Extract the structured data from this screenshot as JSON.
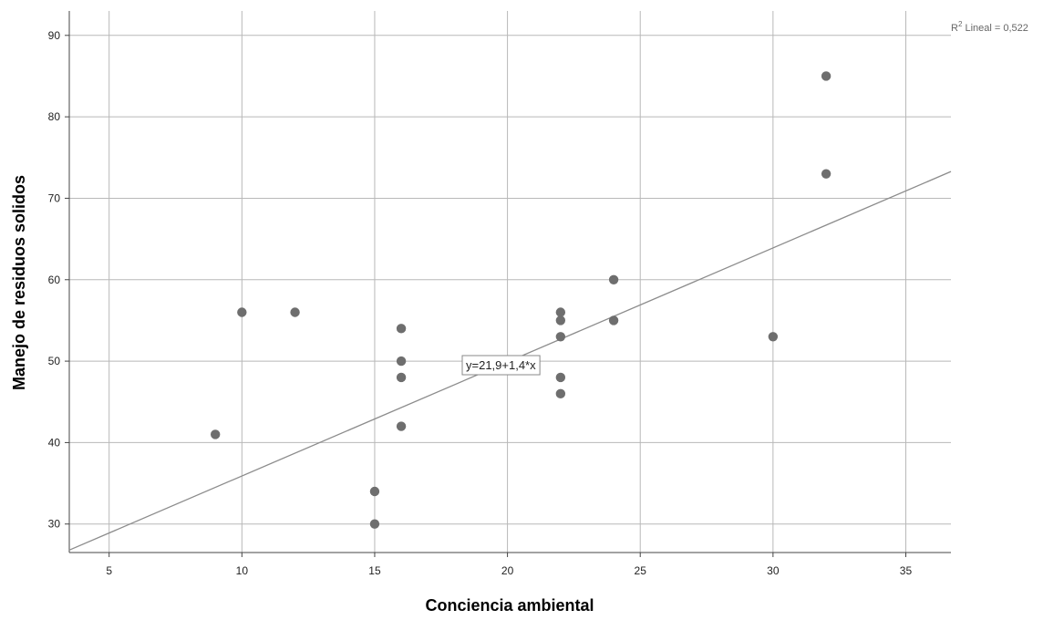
{
  "chart_data": {
    "type": "scatter",
    "xlabel": "Conciencia ambiental",
    "ylabel": "Manejo de residuos solidos",
    "xlim": [
      3.5,
      36.7
    ],
    "ylim": [
      26.5,
      93
    ],
    "xticks": [
      5,
      10,
      15,
      20,
      25,
      30,
      35
    ],
    "yticks": [
      30,
      40,
      50,
      60,
      70,
      80,
      90
    ],
    "grid": true,
    "points": [
      {
        "x": 9,
        "y": 41
      },
      {
        "x": 10,
        "y": 56
      },
      {
        "x": 12,
        "y": 56
      },
      {
        "x": 15,
        "y": 34
      },
      {
        "x": 15,
        "y": 30
      },
      {
        "x": 16,
        "y": 54
      },
      {
        "x": 16,
        "y": 50
      },
      {
        "x": 16,
        "y": 48
      },
      {
        "x": 16,
        "y": 42
      },
      {
        "x": 22,
        "y": 56
      },
      {
        "x": 22,
        "y": 55
      },
      {
        "x": 22,
        "y": 53
      },
      {
        "x": 22,
        "y": 48
      },
      {
        "x": 22,
        "y": 46
      },
      {
        "x": 24,
        "y": 60
      },
      {
        "x": 24,
        "y": 55
      },
      {
        "x": 30,
        "y": 53
      },
      {
        "x": 32,
        "y": 85
      },
      {
        "x": 32,
        "y": 73
      }
    ],
    "fit_line": {
      "intercept": 21.9,
      "slope": 1.4,
      "equation_label": "y=21,9+1,4*x",
      "r2_prefix": "R",
      "r2_sup": "2",
      "r2_text": " Lineal = 0,522"
    }
  }
}
